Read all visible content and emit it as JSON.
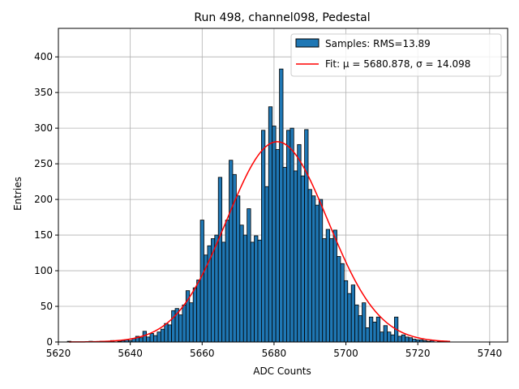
{
  "chart_data": {
    "type": "bar",
    "title": "Run 498, channel098, Pedestal",
    "xlabel": "ADC Counts",
    "ylabel": "Entries",
    "xlim": [
      5620,
      5745
    ],
    "ylim": [
      0,
      440
    ],
    "xticks": [
      5620,
      5640,
      5660,
      5680,
      5700,
      5720,
      5740
    ],
    "yticks": [
      0,
      50,
      100,
      150,
      200,
      250,
      300,
      350,
      400
    ],
    "grid": true,
    "legend_position": "top-right",
    "colors": {
      "bars": "#1f77b4",
      "bar_edge": "#000000",
      "fit": "#ff0000"
    },
    "series": [
      {
        "name": "Samples: RMS=13.89",
        "kind": "histogram",
        "bin_width": 1,
        "bins": [
          {
            "x": 5623,
            "y": 1
          },
          {
            "x": 5629,
            "y": 1
          },
          {
            "x": 5632,
            "y": 1
          },
          {
            "x": 5635,
            "y": 2
          },
          {
            "x": 5637,
            "y": 1
          },
          {
            "x": 5638,
            "y": 2
          },
          {
            "x": 5639,
            "y": 3
          },
          {
            "x": 5640,
            "y": 2
          },
          {
            "x": 5641,
            "y": 5
          },
          {
            "x": 5642,
            "y": 8
          },
          {
            "x": 5643,
            "y": 6
          },
          {
            "x": 5644,
            "y": 15
          },
          {
            "x": 5645,
            "y": 7
          },
          {
            "x": 5646,
            "y": 12
          },
          {
            "x": 5647,
            "y": 9
          },
          {
            "x": 5648,
            "y": 14
          },
          {
            "x": 5649,
            "y": 18
          },
          {
            "x": 5650,
            "y": 26
          },
          {
            "x": 5651,
            "y": 24
          },
          {
            "x": 5652,
            "y": 44
          },
          {
            "x": 5653,
            "y": 47
          },
          {
            "x": 5654,
            "y": 38
          },
          {
            "x": 5655,
            "y": 52
          },
          {
            "x": 5656,
            "y": 72
          },
          {
            "x": 5657,
            "y": 55
          },
          {
            "x": 5658,
            "y": 76
          },
          {
            "x": 5659,
            "y": 87
          },
          {
            "x": 5660,
            "y": 171
          },
          {
            "x": 5661,
            "y": 122
          },
          {
            "x": 5662,
            "y": 135
          },
          {
            "x": 5663,
            "y": 145
          },
          {
            "x": 5664,
            "y": 150
          },
          {
            "x": 5665,
            "y": 231
          },
          {
            "x": 5666,
            "y": 140
          },
          {
            "x": 5667,
            "y": 171
          },
          {
            "x": 5668,
            "y": 255
          },
          {
            "x": 5669,
            "y": 235
          },
          {
            "x": 5670,
            "y": 205
          },
          {
            "x": 5671,
            "y": 164
          },
          {
            "x": 5672,
            "y": 150
          },
          {
            "x": 5673,
            "y": 187
          },
          {
            "x": 5674,
            "y": 140
          },
          {
            "x": 5675,
            "y": 149
          },
          {
            "x": 5676,
            "y": 143
          },
          {
            "x": 5677,
            "y": 297
          },
          {
            "x": 5678,
            "y": 218
          },
          {
            "x": 5679,
            "y": 330
          },
          {
            "x": 5680,
            "y": 303
          },
          {
            "x": 5681,
            "y": 270
          },
          {
            "x": 5682,
            "y": 383
          },
          {
            "x": 5683,
            "y": 245
          },
          {
            "x": 5684,
            "y": 297
          },
          {
            "x": 5685,
            "y": 300
          },
          {
            "x": 5686,
            "y": 240
          },
          {
            "x": 5687,
            "y": 277
          },
          {
            "x": 5688,
            "y": 233
          },
          {
            "x": 5689,
            "y": 298
          },
          {
            "x": 5690,
            "y": 214
          },
          {
            "x": 5691,
            "y": 205
          },
          {
            "x": 5692,
            "y": 192
          },
          {
            "x": 5693,
            "y": 200
          },
          {
            "x": 5694,
            "y": 145
          },
          {
            "x": 5695,
            "y": 158
          },
          {
            "x": 5696,
            "y": 145
          },
          {
            "x": 5697,
            "y": 157
          },
          {
            "x": 5698,
            "y": 120
          },
          {
            "x": 5699,
            "y": 110
          },
          {
            "x": 5700,
            "y": 86
          },
          {
            "x": 5701,
            "y": 68
          },
          {
            "x": 5702,
            "y": 80
          },
          {
            "x": 5703,
            "y": 52
          },
          {
            "x": 5704,
            "y": 37
          },
          {
            "x": 5705,
            "y": 55
          },
          {
            "x": 5706,
            "y": 20
          },
          {
            "x": 5707,
            "y": 35
          },
          {
            "x": 5708,
            "y": 28
          },
          {
            "x": 5709,
            "y": 35
          },
          {
            "x": 5710,
            "y": 14
          },
          {
            "x": 5711,
            "y": 23
          },
          {
            "x": 5712,
            "y": 14
          },
          {
            "x": 5713,
            "y": 10
          },
          {
            "x": 5714,
            "y": 35
          },
          {
            "x": 5715,
            "y": 8
          },
          {
            "x": 5716,
            "y": 10
          },
          {
            "x": 5717,
            "y": 7
          },
          {
            "x": 5718,
            "y": 6
          },
          {
            "x": 5719,
            "y": 4
          },
          {
            "x": 5720,
            "y": 3
          },
          {
            "x": 5721,
            "y": 3
          },
          {
            "x": 5722,
            "y": 2
          },
          {
            "x": 5723,
            "y": 1
          },
          {
            "x": 5724,
            "y": 2
          },
          {
            "x": 5726,
            "y": 1
          },
          {
            "x": 5728,
            "y": 1
          }
        ]
      },
      {
        "name": "Fit: μ = 5680.878, σ = 14.098",
        "kind": "gaussian",
        "mu": 5680.878,
        "sigma": 14.098,
        "amplitude": 281,
        "x_range": [
          5623,
          5729
        ]
      }
    ]
  }
}
